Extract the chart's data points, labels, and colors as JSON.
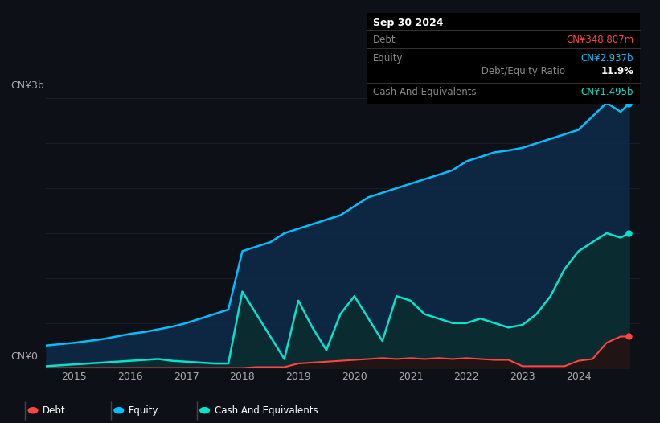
{
  "bg_color": "#0d1117",
  "plot_bg_color": "#0d1117",
  "title_box": {
    "date": "Sep 30 2024",
    "debt_label": "Debt",
    "debt_value": "CN¥348.807m",
    "debt_color": "#ff4444",
    "equity_label": "Equity",
    "equity_value": "CN¥2.937b",
    "equity_color": "#00bfff",
    "ratio_bold": "11.9%",
    "ratio_text": " Debt/Equity Ratio",
    "ratio_color": "#ffffff",
    "cash_label": "Cash And Equivalents",
    "cash_value": "CN¥1.495b",
    "cash_color": "#00e5cc"
  },
  "ylabel_top": "CN¥3b",
  "ylabel_bottom": "CN¥0",
  "xticklabels": [
    "2015",
    "2016",
    "2017",
    "2018",
    "2019",
    "2020",
    "2021",
    "2022",
    "2023",
    "2024"
  ],
  "legend": [
    {
      "label": "Debt",
      "color": "#ff4444"
    },
    {
      "label": "Equity",
      "color": "#00bfff"
    },
    {
      "label": "Cash And Equivalents",
      "color": "#00e5cc"
    }
  ],
  "equity_color": "#00bfff",
  "equity_fill": "#1a3a5c",
  "debt_color": "#ff4444",
  "debt_fill": "#3a1a1a",
  "cash_color": "#00e5cc",
  "cash_fill": "#0d3330",
  "grid_color": "#1e2a3a",
  "equity_x": [
    2014.5,
    2015.0,
    2015.25,
    2015.5,
    2015.75,
    2016.0,
    2016.25,
    2016.5,
    2016.75,
    2017.0,
    2017.25,
    2017.5,
    2017.75,
    2018.0,
    2018.25,
    2018.5,
    2018.75,
    2019.0,
    2019.25,
    2019.5,
    2019.75,
    2020.0,
    2020.25,
    2020.5,
    2020.75,
    2021.0,
    2021.25,
    2021.5,
    2021.75,
    2022.0,
    2022.25,
    2022.5,
    2022.75,
    2023.0,
    2023.25,
    2023.5,
    2023.75,
    2024.0,
    2024.25,
    2024.5,
    2024.75,
    2024.9
  ],
  "equity_y": [
    0.25,
    0.28,
    0.3,
    0.32,
    0.35,
    0.38,
    0.4,
    0.43,
    0.46,
    0.5,
    0.55,
    0.6,
    0.65,
    1.3,
    1.35,
    1.4,
    1.5,
    1.55,
    1.6,
    1.65,
    1.7,
    1.8,
    1.9,
    1.95,
    2.0,
    2.05,
    2.1,
    2.15,
    2.2,
    2.3,
    2.35,
    2.4,
    2.42,
    2.45,
    2.5,
    2.55,
    2.6,
    2.65,
    2.8,
    2.95,
    2.85,
    2.94
  ],
  "debt_x": [
    2014.5,
    2015.0,
    2015.5,
    2016.0,
    2016.5,
    2017.0,
    2017.5,
    2017.75,
    2018.0,
    2018.25,
    2018.5,
    2018.75,
    2019.0,
    2019.25,
    2019.5,
    2019.75,
    2020.0,
    2020.25,
    2020.5,
    2020.75,
    2021.0,
    2021.25,
    2021.5,
    2021.75,
    2022.0,
    2022.25,
    2022.5,
    2022.75,
    2023.0,
    2023.25,
    2023.5,
    2023.75,
    2024.0,
    2024.25,
    2024.5,
    2024.75,
    2024.9
  ],
  "debt_y": [
    0.0,
    0.0,
    0.0,
    0.0,
    0.0,
    0.0,
    0.0,
    0.0,
    0.0,
    0.01,
    0.01,
    0.01,
    0.05,
    0.06,
    0.07,
    0.08,
    0.09,
    0.1,
    0.11,
    0.1,
    0.11,
    0.1,
    0.11,
    0.1,
    0.11,
    0.1,
    0.09,
    0.09,
    0.02,
    0.02,
    0.02,
    0.02,
    0.08,
    0.1,
    0.28,
    0.35,
    0.35
  ],
  "cash_x": [
    2014.5,
    2015.0,
    2015.25,
    2015.5,
    2015.75,
    2016.0,
    2016.25,
    2016.5,
    2016.75,
    2017.0,
    2017.25,
    2017.5,
    2017.75,
    2018.0,
    2018.25,
    2018.5,
    2018.75,
    2019.0,
    2019.25,
    2019.5,
    2019.75,
    2020.0,
    2020.25,
    2020.5,
    2020.75,
    2021.0,
    2021.25,
    2021.5,
    2021.75,
    2022.0,
    2022.25,
    2022.5,
    2022.75,
    2023.0,
    2023.25,
    2023.5,
    2023.75,
    2024.0,
    2024.25,
    2024.5,
    2024.75,
    2024.9
  ],
  "cash_y": [
    0.02,
    0.04,
    0.05,
    0.06,
    0.07,
    0.08,
    0.09,
    0.1,
    0.08,
    0.07,
    0.06,
    0.05,
    0.05,
    0.85,
    0.6,
    0.35,
    0.1,
    0.75,
    0.45,
    0.2,
    0.6,
    0.8,
    0.55,
    0.3,
    0.8,
    0.75,
    0.6,
    0.55,
    0.5,
    0.5,
    0.55,
    0.5,
    0.45,
    0.48,
    0.6,
    0.8,
    1.1,
    1.3,
    1.4,
    1.5,
    1.45,
    1.5
  ],
  "ylim": [
    0,
    3.2
  ],
  "xlim": [
    2014.5,
    2025.1
  ]
}
